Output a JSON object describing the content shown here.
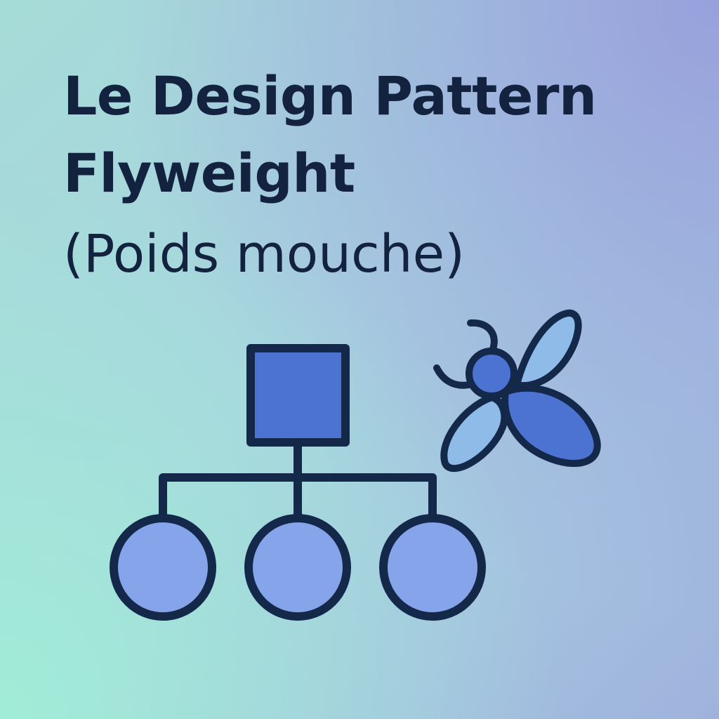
{
  "title": {
    "line1": "Le Design Pattern",
    "line2": "Flyweight",
    "subtitle": "(Poids mouche)"
  },
  "illustration": {
    "icons": [
      "hierarchy-diagram-icon",
      "fly-icon"
    ],
    "colors": {
      "outline": "#14284a",
      "root_fill": "#4c72d2",
      "child_fill": "#86a4ea",
      "fly_body": "#4c72d2",
      "fly_wing": "#8fbbe8"
    }
  }
}
